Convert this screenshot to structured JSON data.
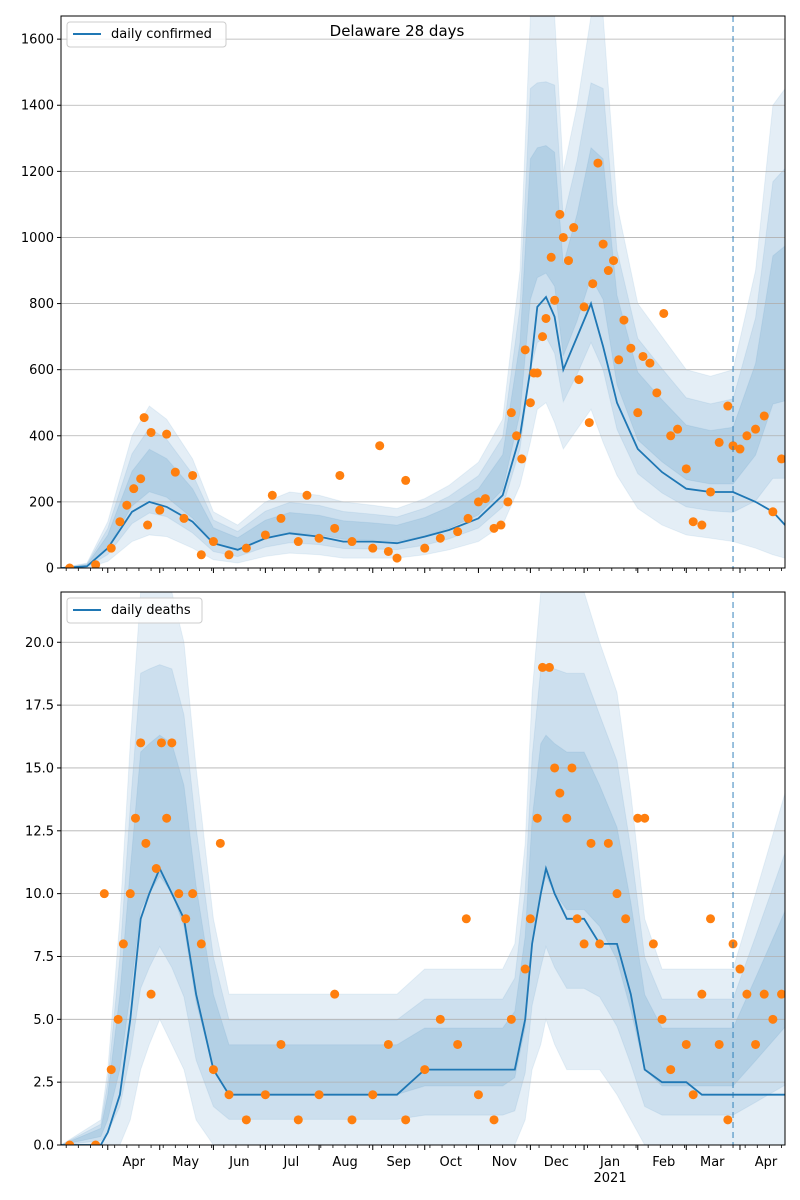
{
  "figure": {
    "title": "Delaware 28 days",
    "x_month_labels": [
      "Apr",
      "May",
      "Jun",
      "Jul",
      "Aug",
      "Sep",
      "Oct",
      "Nov",
      "Dec",
      "Jan",
      "Feb",
      "Mar",
      "Apr"
    ],
    "x_year_label": "2021",
    "forecast_start": "2021-03-28"
  },
  "colors": {
    "line": "#1f77b4",
    "points": "#ff7f0e",
    "band": "#1f77b4",
    "grid": "#b0b0b0"
  },
  "chart_data": [
    {
      "type": "line",
      "legend": "daily confirmed",
      "legend_position": "top-left",
      "grid": true,
      "xlim": [
        "2020-03-05",
        "2021-04-27"
      ],
      "ylim": [
        0,
        1670
      ],
      "y_ticks": [
        0,
        200,
        400,
        600,
        800,
        1000,
        1200,
        1400,
        1600
      ],
      "y_tick_labels": [
        "0",
        "200",
        "400",
        "600",
        "800",
        "1000",
        "1200",
        "1400",
        "1600"
      ],
      "series": [
        {
          "kind": "line",
          "x": [
            "2020-03-05",
            "2020-03-20",
            "2020-04-01",
            "2020-04-15",
            "2020-04-25",
            "2020-05-05",
            "2020-05-20",
            "2020-06-01",
            "2020-06-15",
            "2020-07-01",
            "2020-07-15",
            "2020-08-01",
            "2020-08-15",
            "2020-09-01",
            "2020-09-15",
            "2020-10-01",
            "2020-10-15",
            "2020-11-01",
            "2020-11-15",
            "2020-11-25",
            "2020-12-01",
            "2020-12-05",
            "2020-12-10",
            "2020-12-15",
            "2020-12-20",
            "2020-12-28",
            "2021-01-05",
            "2021-01-12",
            "2021-01-20",
            "2021-02-01",
            "2021-02-15",
            "2021-03-01",
            "2021-03-15",
            "2021-03-28",
            "2021-04-10",
            "2021-04-20",
            "2021-04-27"
          ],
          "y": [
            0,
            5,
            60,
            170,
            200,
            185,
            140,
            75,
            55,
            90,
            105,
            95,
            80,
            80,
            75,
            95,
            115,
            150,
            220,
            400,
            600,
            790,
            820,
            760,
            600,
            700,
            800,
            670,
            500,
            360,
            290,
            240,
            230,
            230,
            200,
            170,
            130
          ]
        },
        {
          "kind": "band",
          "x": [
            "2020-03-05",
            "2020-03-20",
            "2020-04-01",
            "2020-04-15",
            "2020-04-25",
            "2020-05-05",
            "2020-05-20",
            "2020-06-01",
            "2020-06-15",
            "2020-07-01",
            "2020-07-15",
            "2020-08-01",
            "2020-08-15",
            "2020-09-01",
            "2020-09-15",
            "2020-10-01",
            "2020-10-15",
            "2020-11-01",
            "2020-11-15",
            "2020-11-25",
            "2020-12-01",
            "2020-12-05",
            "2020-12-10",
            "2020-12-15",
            "2020-12-20",
            "2020-12-28",
            "2021-01-05",
            "2021-01-12",
            "2021-01-20",
            "2021-02-01",
            "2021-02-15",
            "2021-03-01",
            "2021-03-15",
            "2021-03-28",
            "2021-04-10",
            "2021-04-20",
            "2021-04-27"
          ],
          "y_low": [
            0,
            0,
            20,
            80,
            100,
            95,
            60,
            25,
            15,
            35,
            45,
            40,
            30,
            30,
            30,
            40,
            55,
            80,
            130,
            250,
            380,
            480,
            500,
            440,
            360,
            420,
            480,
            380,
            280,
            180,
            130,
            100,
            90,
            80,
            60,
            40,
            30
          ],
          "y_high": [
            0,
            15,
            140,
            400,
            490,
            450,
            330,
            170,
            130,
            200,
            230,
            220,
            200,
            190,
            180,
            210,
            250,
            320,
            450,
            900,
            1670,
            1670,
            1670,
            1670,
            1200,
            1400,
            1670,
            1670,
            1100,
            800,
            700,
            600,
            580,
            600,
            900,
            1400,
            1450
          ]
        },
        {
          "kind": "points",
          "x": [
            "2020-03-10",
            "2020-03-25",
            "2020-04-03",
            "2020-04-08",
            "2020-04-12",
            "2020-04-16",
            "2020-04-20",
            "2020-04-22",
            "2020-04-24",
            "2020-04-26",
            "2020-05-01",
            "2020-05-05",
            "2020-05-10",
            "2020-05-15",
            "2020-05-20",
            "2020-05-25",
            "2020-06-01",
            "2020-06-10",
            "2020-06-20",
            "2020-07-01",
            "2020-07-05",
            "2020-07-10",
            "2020-07-20",
            "2020-07-25",
            "2020-08-01",
            "2020-08-10",
            "2020-08-13",
            "2020-08-20",
            "2020-09-01",
            "2020-09-05",
            "2020-09-10",
            "2020-09-15",
            "2020-09-20",
            "2020-10-01",
            "2020-10-10",
            "2020-10-20",
            "2020-10-26",
            "2020-11-01",
            "2020-11-05",
            "2020-11-10",
            "2020-11-14",
            "2020-11-18",
            "2020-11-20",
            "2020-11-23",
            "2020-11-26",
            "2020-11-28",
            "2020-12-01",
            "2020-12-03",
            "2020-12-05",
            "2020-12-08",
            "2020-12-10",
            "2020-12-13",
            "2020-12-15",
            "2020-12-18",
            "2020-12-20",
            "2020-12-23",
            "2020-12-26",
            "2020-12-29",
            "2021-01-01",
            "2021-01-04",
            "2021-01-06",
            "2021-01-09",
            "2021-01-12",
            "2021-01-15",
            "2021-01-18",
            "2021-01-21",
            "2021-01-24",
            "2021-01-28",
            "2021-02-01",
            "2021-02-04",
            "2021-02-08",
            "2021-02-12",
            "2021-02-16",
            "2021-02-20",
            "2021-02-24",
            "2021-03-01",
            "2021-03-05",
            "2021-03-10",
            "2021-03-15",
            "2021-03-20",
            "2021-03-25",
            "2021-03-28",
            "2021-04-01",
            "2021-04-05",
            "2021-04-10",
            "2021-04-15",
            "2021-04-20",
            "2021-04-25"
          ],
          "y": [
            0,
            10,
            60,
            140,
            190,
            240,
            270,
            455,
            130,
            410,
            175,
            405,
            290,
            150,
            280,
            40,
            80,
            40,
            60,
            100,
            220,
            150,
            80,
            220,
            90,
            120,
            280,
            80,
            60,
            370,
            50,
            30,
            265,
            60,
            90,
            110,
            150,
            200,
            210,
            120,
            130,
            200,
            470,
            400,
            330,
            660,
            500,
            590,
            590,
            700,
            755,
            940,
            810,
            1070,
            1000,
            930,
            1030,
            570,
            790,
            440,
            860,
            1225,
            980,
            900,
            930,
            630,
            750,
            665,
            470,
            640,
            620,
            530,
            770,
            400,
            420,
            300,
            140,
            130,
            230,
            380,
            490,
            370,
            360,
            400,
            420,
            460,
            170,
            330
          ]
        }
      ]
    },
    {
      "type": "line",
      "legend": "daily deaths",
      "legend_position": "top-left",
      "grid": true,
      "xlim": [
        "2020-03-05",
        "2021-04-27"
      ],
      "ylim": [
        0,
        22
      ],
      "y_ticks": [
        0,
        2.5,
        5,
        7.5,
        10,
        12.5,
        15,
        17.5,
        20
      ],
      "y_tick_labels": [
        "0.0",
        "2.5",
        "5.0",
        "7.5",
        "10.0",
        "12.5",
        "15.0",
        "17.5",
        "20.0"
      ],
      "series": [
        {
          "kind": "line",
          "x": [
            "2020-03-05",
            "2020-03-28",
            "2020-04-01",
            "2020-04-08",
            "2020-04-14",
            "2020-04-20",
            "2020-04-25",
            "2020-05-01",
            "2020-05-08",
            "2020-05-15",
            "2020-05-22",
            "2020-06-01",
            "2020-06-10",
            "2020-06-20",
            "2020-07-01",
            "2020-07-15",
            "2020-08-01",
            "2020-08-15",
            "2020-09-01",
            "2020-09-15",
            "2020-10-01",
            "2020-10-15",
            "2020-11-01",
            "2020-11-15",
            "2020-11-22",
            "2020-11-28",
            "2020-12-02",
            "2020-12-07",
            "2020-12-10",
            "2020-12-15",
            "2020-12-22",
            "2021-01-01",
            "2021-01-10",
            "2021-01-20",
            "2021-01-28",
            "2021-02-05",
            "2021-02-15",
            "2021-03-01",
            "2021-03-10",
            "2021-03-20",
            "2021-03-28",
            "2021-04-10",
            "2021-04-27"
          ],
          "y": [
            0,
            0,
            0.5,
            2,
            5,
            9,
            10,
            11,
            10,
            9,
            6,
            3,
            2,
            2,
            2,
            2,
            2,
            2,
            2,
            2,
            3,
            3,
            3,
            3,
            3,
            5,
            8,
            10,
            11,
            10,
            9,
            9,
            8,
            8,
            6,
            3,
            2.5,
            2.5,
            2,
            2,
            2,
            2,
            2
          ]
        },
        {
          "kind": "band",
          "x": [
            "2020-03-05",
            "2020-03-28",
            "2020-04-01",
            "2020-04-08",
            "2020-04-14",
            "2020-04-20",
            "2020-04-25",
            "2020-05-01",
            "2020-05-08",
            "2020-05-15",
            "2020-05-22",
            "2020-06-01",
            "2020-06-10",
            "2020-06-20",
            "2020-07-01",
            "2020-07-15",
            "2020-08-01",
            "2020-08-15",
            "2020-09-01",
            "2020-09-15",
            "2020-10-01",
            "2020-10-15",
            "2020-11-01",
            "2020-11-15",
            "2020-11-22",
            "2020-11-28",
            "2020-12-02",
            "2020-12-07",
            "2020-12-10",
            "2020-12-15",
            "2020-12-22",
            "2021-01-01",
            "2021-01-10",
            "2021-01-20",
            "2021-01-28",
            "2021-02-05",
            "2021-02-15",
            "2021-03-01",
            "2021-03-10",
            "2021-03-20",
            "2021-03-28",
            "2021-04-10",
            "2021-04-27"
          ],
          "y_low": [
            0,
            0,
            0,
            0,
            1,
            3,
            4,
            5,
            4,
            3,
            1,
            0,
            0,
            0,
            0,
            0,
            0,
            0,
            0,
            0,
            0,
            0,
            0,
            0,
            0,
            1,
            3,
            4,
            5,
            4,
            3,
            3,
            3,
            2,
            1,
            0,
            0,
            0,
            0,
            0,
            0,
            0,
            0
          ],
          "y_high": [
            0,
            1,
            3,
            9,
            16,
            22,
            22,
            22,
            22,
            20,
            15,
            9,
            6,
            6,
            6,
            6,
            6,
            6,
            6,
            6,
            7,
            7,
            7,
            7,
            8,
            12,
            18,
            22,
            22,
            22,
            22,
            22,
            20,
            18,
            14,
            9,
            7,
            7,
            7,
            7,
            7,
            10,
            14
          ]
        },
        {
          "kind": "points",
          "x": [
            "2020-03-10",
            "2020-03-25",
            "2020-03-30",
            "2020-04-03",
            "2020-04-07",
            "2020-04-10",
            "2020-04-14",
            "2020-04-17",
            "2020-04-20",
            "2020-04-23",
            "2020-04-26",
            "2020-04-29",
            "2020-05-02",
            "2020-05-05",
            "2020-05-08",
            "2020-05-12",
            "2020-05-16",
            "2020-05-20",
            "2020-05-25",
            "2020-06-01",
            "2020-06-05",
            "2020-06-10",
            "2020-06-20",
            "2020-07-01",
            "2020-07-10",
            "2020-07-20",
            "2020-08-01",
            "2020-08-10",
            "2020-08-20",
            "2020-09-01",
            "2020-09-10",
            "2020-09-20",
            "2020-10-01",
            "2020-10-10",
            "2020-10-20",
            "2020-10-25",
            "2020-11-01",
            "2020-11-10",
            "2020-11-20",
            "2020-11-28",
            "2020-12-01",
            "2020-12-05",
            "2020-12-08",
            "2020-12-12",
            "2020-12-15",
            "2020-12-18",
            "2020-12-22",
            "2020-12-25",
            "2020-12-28",
            "2021-01-01",
            "2021-01-05",
            "2021-01-10",
            "2021-01-15",
            "2021-01-20",
            "2021-01-25",
            "2021-02-01",
            "2021-02-05",
            "2021-02-10",
            "2021-02-15",
            "2021-02-20",
            "2021-03-01",
            "2021-03-05",
            "2021-03-10",
            "2021-03-15",
            "2021-03-20",
            "2021-03-25",
            "2021-03-28",
            "2021-04-01",
            "2021-04-05",
            "2021-04-10",
            "2021-04-15",
            "2021-04-20",
            "2021-04-25"
          ],
          "y": [
            0,
            0,
            10,
            3,
            5,
            8,
            10,
            13,
            16,
            12,
            6,
            11,
            16,
            13,
            16,
            10,
            9,
            10,
            8,
            3,
            12,
            2,
            1,
            2,
            4,
            1,
            2,
            6,
            1,
            2,
            4,
            1,
            3,
            5,
            4,
            9,
            2,
            1,
            5,
            7,
            9,
            13,
            19,
            19,
            15,
            14,
            13,
            15,
            9,
            8,
            12,
            8,
            12,
            10,
            9,
            13,
            13,
            8,
            5,
            3,
            4,
            2,
            6,
            9,
            4,
            1,
            8,
            7,
            6,
            4,
            6,
            5,
            6
          ]
        }
      ]
    }
  ]
}
